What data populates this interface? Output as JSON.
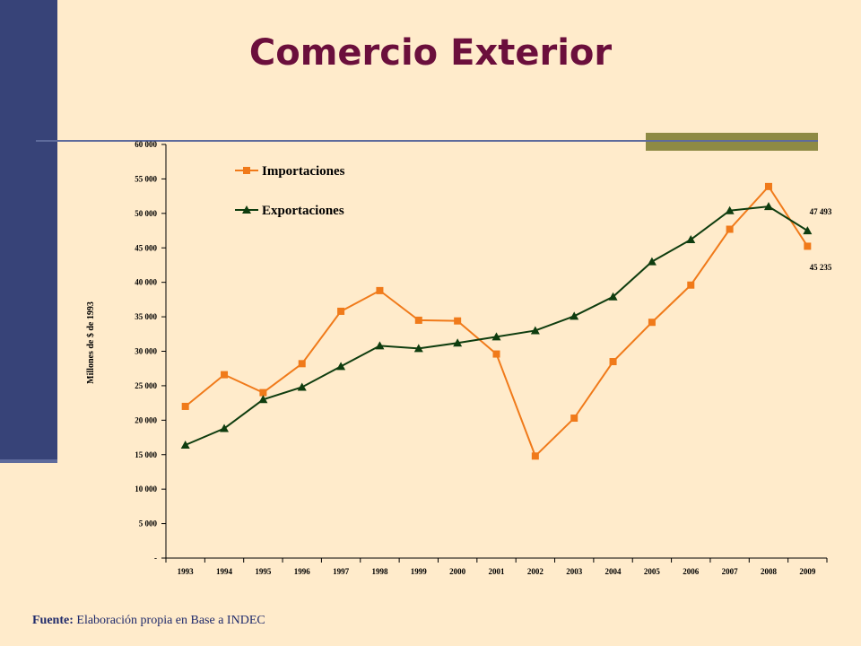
{
  "slide": {
    "title": "Comercio Exterior",
    "source_label": "Fuente:",
    "source_text": " Elaboración propia en Base a INDEC"
  },
  "colors": {
    "background": "#FFEBCB",
    "sidebar": "#374378",
    "title": "#6B0F3C",
    "importaciones": "#F07A1A",
    "exportaciones": "#0F3D0F",
    "accent": "#8E8A44"
  },
  "chart_data": {
    "type": "line",
    "ylabel": "Millones  de  $  de  1993",
    "ylim": [
      0,
      60000
    ],
    "y_ticks": [
      0,
      5000,
      10000,
      15000,
      20000,
      25000,
      30000,
      35000,
      40000,
      45000,
      50000,
      55000,
      60000
    ],
    "y_tick_labels": [
      "-",
      "5 000",
      "10 000",
      "15 000",
      "20 000",
      "25 000",
      "30 000",
      "35 000",
      "40 000",
      "45 000",
      "50 000",
      "55 000",
      "60 000"
    ],
    "categories": [
      "1993",
      "1994",
      "1995",
      "1996",
      "1997",
      "1998",
      "1999",
      "2000",
      "2001",
      "2002",
      "2003",
      "2004",
      "2005",
      "2006",
      "2007",
      "2008",
      "2009"
    ],
    "legend_position": "top-left",
    "series": [
      {
        "name": "Importaciones",
        "marker": "square",
        "color": "#F07A1A",
        "values": [
          22000,
          26600,
          24000,
          28200,
          35800,
          38800,
          34500,
          34400,
          29600,
          14800,
          20300,
          28500,
          34200,
          39600,
          47700,
          53900,
          45235
        ]
      },
      {
        "name": "Exportaciones",
        "marker": "triangle",
        "color": "#0F3D0F",
        "values": [
          16400,
          18800,
          23000,
          24800,
          27800,
          30800,
          30400,
          31200,
          32100,
          33000,
          35100,
          37900,
          43000,
          46200,
          50400,
          51000,
          47493
        ]
      }
    ],
    "annotations": [
      {
        "text": "47 493",
        "series": 1,
        "index": 16
      },
      {
        "text": "45 235",
        "series": 0,
        "index": 16
      }
    ]
  }
}
